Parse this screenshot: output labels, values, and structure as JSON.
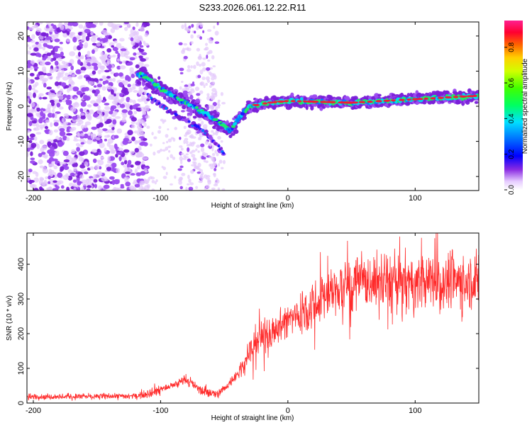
{
  "title": "S233.2026.061.12.22.R11",
  "chart_data": [
    {
      "type": "heatmap",
      "xlabel": "Height of straight line (km)",
      "ylabel": "Frequency (Hz)",
      "xlim": [
        -205,
        150
      ],
      "ylim": [
        -24,
        24
      ],
      "xticks": [
        -200,
        -100,
        0,
        100
      ],
      "yticks": [
        20,
        10,
        0,
        -10,
        -20
      ],
      "colorbar": {
        "label": "Normalized spectral amplitude",
        "range": [
          0,
          0.95
        ],
        "ticks": [
          0.0,
          0.2,
          0.4,
          0.6,
          0.8
        ]
      },
      "ridge": {
        "description_points": [
          {
            "x": -115,
            "y": 9
          },
          {
            "x": -100,
            "y": 5
          },
          {
            "x": -80,
            "y": 1
          },
          {
            "x": -60,
            "y": -3
          },
          {
            "x": -45,
            "y": -7
          },
          {
            "x": -38,
            "y": -3
          },
          {
            "x": -30,
            "y": 0
          },
          {
            "x": -15,
            "y": 1
          },
          {
            "x": 0,
            "y": 1.5
          },
          {
            "x": 50,
            "y": 1
          },
          {
            "x": 100,
            "y": 2
          },
          {
            "x": 150,
            "y": 3
          }
        ],
        "secondary_branch": [
          {
            "x": -110,
            "y": 3
          },
          {
            "x": -90,
            "y": -2
          },
          {
            "x": -70,
            "y": -6
          },
          {
            "x": -55,
            "y": -11
          },
          {
            "x": -50,
            "y": -14
          }
        ]
      }
    },
    {
      "type": "line",
      "xlabel": "Height of straight line (km)",
      "ylabel": "SNR (10 * v/v)",
      "xlim": [
        -205,
        150
      ],
      "ylim": [
        0,
        490
      ],
      "xticks": [
        -200,
        -100,
        0,
        100
      ],
      "yticks": [
        0,
        100,
        200,
        300,
        400
      ],
      "series": [
        {
          "name": "SNR",
          "color": "#ff2a2a",
          "envelope": [
            {
              "x": -205,
              "y": 18
            },
            {
              "x": -120,
              "y": 20
            },
            {
              "x": -110,
              "y": 30
            },
            {
              "x": -90,
              "y": 50
            },
            {
              "x": -80,
              "y": 70
            },
            {
              "x": -70,
              "y": 40
            },
            {
              "x": -55,
              "y": 25
            },
            {
              "x": -45,
              "y": 60
            },
            {
              "x": -35,
              "y": 110
            },
            {
              "x": -25,
              "y": 180
            },
            {
              "x": -15,
              "y": 200
            },
            {
              "x": 0,
              "y": 240
            },
            {
              "x": 10,
              "y": 260
            },
            {
              "x": 25,
              "y": 300
            },
            {
              "x": 40,
              "y": 330
            },
            {
              "x": 60,
              "y": 350
            },
            {
              "x": 80,
              "y": 350
            },
            {
              "x": 100,
              "y": 345
            },
            {
              "x": 120,
              "y": 350
            },
            {
              "x": 150,
              "y": 355
            }
          ]
        }
      ]
    }
  ]
}
